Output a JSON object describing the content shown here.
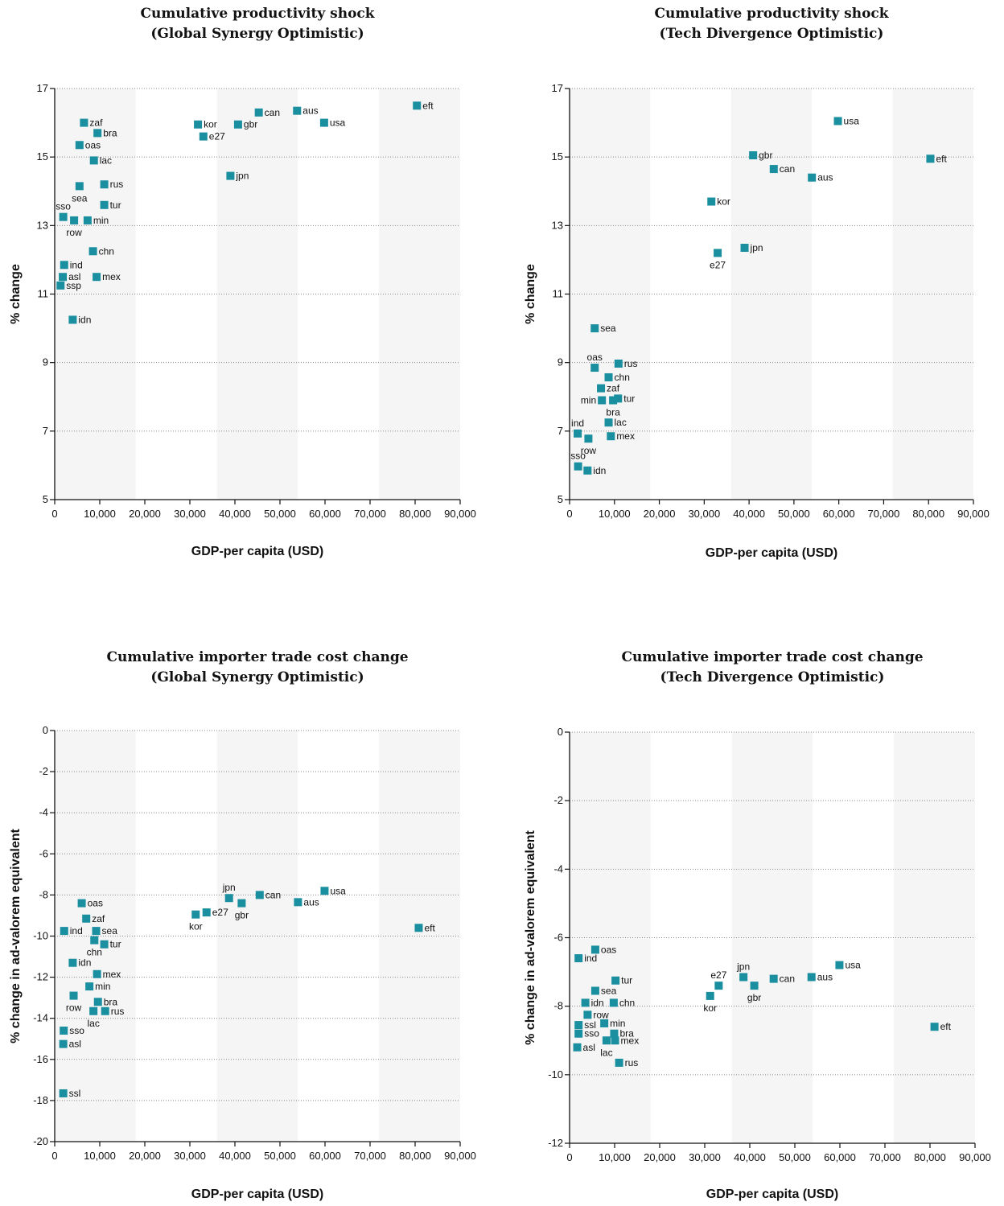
{
  "chart_data": [
    {
      "type": "scatter",
      "title": "Cumulative productivity shock",
      "subtitle": "(Global Synergy Optimistic)",
      "xlabel": "GDP-per capita (USD)",
      "ylabel": "% change",
      "xlim": [
        0,
        90000
      ],
      "ylim": [
        5,
        17
      ],
      "xticks": [
        "0",
        "10,000",
        "20,000",
        "30,000",
        "40,000",
        "50,000",
        "60,000",
        "70,000",
        "80,000",
        "90,000"
      ],
      "yticks": [
        "5",
        "7",
        "9",
        "11",
        "13",
        "15",
        "17"
      ],
      "marker_color": "#1a8fa0",
      "band_color": "#f5f5f5",
      "points": [
        {
          "label": "zaf",
          "x": 6500,
          "y": 16.0,
          "pos": "right"
        },
        {
          "label": "bra",
          "x": 9500,
          "y": 15.7,
          "pos": "right"
        },
        {
          "label": "oas",
          "x": 5500,
          "y": 15.35,
          "pos": "right"
        },
        {
          "label": "lac",
          "x": 8700,
          "y": 14.9,
          "pos": "right"
        },
        {
          "label": "rus",
          "x": 11000,
          "y": 14.2,
          "pos": "right"
        },
        {
          "label": "sea",
          "x": 5500,
          "y": 14.15,
          "pos": "below"
        },
        {
          "label": "tur",
          "x": 11000,
          "y": 13.6,
          "pos": "right"
        },
        {
          "label": "sso",
          "x": 1900,
          "y": 13.25,
          "pos": "above"
        },
        {
          "label": "min",
          "x": 7300,
          "y": 13.15,
          "pos": "right"
        },
        {
          "label": "row",
          "x": 4300,
          "y": 13.15,
          "pos": "below"
        },
        {
          "label": "chn",
          "x": 8500,
          "y": 12.25,
          "pos": "right"
        },
        {
          "label": "ind",
          "x": 2100,
          "y": 11.85,
          "pos": "right"
        },
        {
          "label": "asl",
          "x": 1800,
          "y": 11.5,
          "pos": "right"
        },
        {
          "label": "mex",
          "x": 9300,
          "y": 11.5,
          "pos": "right"
        },
        {
          "label": "ssp",
          "x": 1300,
          "y": 11.25,
          "pos": "right"
        },
        {
          "label": "idn",
          "x": 4000,
          "y": 10.25,
          "pos": "right"
        },
        {
          "label": "kor",
          "x": 31800,
          "y": 15.95,
          "pos": "right"
        },
        {
          "label": "gbr",
          "x": 40700,
          "y": 15.95,
          "pos": "right"
        },
        {
          "label": "can",
          "x": 45300,
          "y": 16.3,
          "pos": "right"
        },
        {
          "label": "aus",
          "x": 53800,
          "y": 16.35,
          "pos": "right"
        },
        {
          "label": "usa",
          "x": 59800,
          "y": 16.0,
          "pos": "right"
        },
        {
          "label": "e27",
          "x": 33000,
          "y": 15.6,
          "pos": "right"
        },
        {
          "label": "eft",
          "x": 80400,
          "y": 16.5,
          "pos": "right"
        },
        {
          "label": "jpn",
          "x": 39000,
          "y": 14.45,
          "pos": "right"
        }
      ]
    },
    {
      "type": "scatter",
      "title": "Cumulative productivity shock",
      "subtitle": "(Tech Divergence Optimistic)",
      "xlabel": "GDP-per capita (USD)",
      "ylabel": "% change",
      "xlim": [
        0,
        90000
      ],
      "ylim": [
        5,
        17
      ],
      "xticks": [
        "0",
        "10,000",
        "20,000",
        "30,000",
        "40,000",
        "50,000",
        "60,000",
        "70,000",
        "80,000",
        "90,000"
      ],
      "yticks": [
        "5",
        "7",
        "9",
        "11",
        "13",
        "15",
        "17"
      ],
      "marker_color": "#1a8fa0",
      "band_color": "#f5f5f5",
      "points": [
        {
          "label": "usa",
          "x": 59800,
          "y": 16.05,
          "pos": "right"
        },
        {
          "label": "gbr",
          "x": 40900,
          "y": 15.05,
          "pos": "right"
        },
        {
          "label": "eft",
          "x": 80400,
          "y": 14.95,
          "pos": "right"
        },
        {
          "label": "can",
          "x": 45500,
          "y": 14.65,
          "pos": "right"
        },
        {
          "label": "aus",
          "x": 54000,
          "y": 14.4,
          "pos": "right"
        },
        {
          "label": "kor",
          "x": 31600,
          "y": 13.7,
          "pos": "right"
        },
        {
          "label": "jpn",
          "x": 39000,
          "y": 12.35,
          "pos": "right"
        },
        {
          "label": "e27",
          "x": 33000,
          "y": 12.2,
          "pos": "below"
        },
        {
          "label": "sea",
          "x": 5600,
          "y": 10.0,
          "pos": "right"
        },
        {
          "label": "rus",
          "x": 10900,
          "y": 8.97,
          "pos": "right"
        },
        {
          "label": "oas",
          "x": 5600,
          "y": 8.85,
          "pos": "above"
        },
        {
          "label": "chn",
          "x": 8700,
          "y": 8.57,
          "pos": "right"
        },
        {
          "label": "zaf",
          "x": 7000,
          "y": 8.25,
          "pos": "right"
        },
        {
          "label": "tur",
          "x": 10800,
          "y": 7.95,
          "pos": "right"
        },
        {
          "label": "min",
          "x": 7200,
          "y": 7.9,
          "pos": "left"
        },
        {
          "label": "bra",
          "x": 9700,
          "y": 7.9,
          "pos": "below"
        },
        {
          "label": "lac",
          "x": 8700,
          "y": 7.25,
          "pos": "right"
        },
        {
          "label": "ind",
          "x": 1800,
          "y": 6.93,
          "pos": "above"
        },
        {
          "label": "mex",
          "x": 9200,
          "y": 6.85,
          "pos": "right"
        },
        {
          "label": "row",
          "x": 4200,
          "y": 6.78,
          "pos": "below"
        },
        {
          "label": "sso",
          "x": 1900,
          "y": 5.97,
          "pos": "above"
        },
        {
          "label": "idn",
          "x": 4000,
          "y": 5.85,
          "pos": "right"
        }
      ]
    },
    {
      "type": "scatter",
      "title": "Cumulative importer trade cost change",
      "subtitle": "(Global Synergy Optimistic)",
      "xlabel": "GDP-per capita (USD)",
      "ylabel": "% change in ad-valorem equivalent",
      "xlim": [
        0,
        90000
      ],
      "ylim": [
        -20,
        0
      ],
      "xticks": [
        "0",
        "10,000",
        "20,000",
        "30,000",
        "40,000",
        "50,000",
        "60,000",
        "70,000",
        "80,000",
        "90,000"
      ],
      "yticks": [
        "-20",
        "-18",
        "-16",
        "-14",
        "-12",
        "-10",
        "-8",
        "-6",
        "-4",
        "-2",
        "0"
      ],
      "marker_color": "#1a8fa0",
      "band_color": "#f5f5f5",
      "points": [
        {
          "label": "oas",
          "x": 6000,
          "y": -8.4,
          "pos": "right"
        },
        {
          "label": "zaf",
          "x": 7000,
          "y": -9.15,
          "pos": "right"
        },
        {
          "label": "ind",
          "x": 2100,
          "y": -9.75,
          "pos": "right"
        },
        {
          "label": "sea",
          "x": 9200,
          "y": -9.75,
          "pos": "right"
        },
        {
          "label": "chn",
          "x": 8800,
          "y": -10.2,
          "pos": "below"
        },
        {
          "label": "tur",
          "x": 11000,
          "y": -10.4,
          "pos": "right"
        },
        {
          "label": "idn",
          "x": 4000,
          "y": -11.3,
          "pos": "right"
        },
        {
          "label": "mex",
          "x": 9400,
          "y": -11.85,
          "pos": "right"
        },
        {
          "label": "min",
          "x": 7700,
          "y": -12.45,
          "pos": "right"
        },
        {
          "label": "row",
          "x": 4200,
          "y": -12.9,
          "pos": "below"
        },
        {
          "label": "bra",
          "x": 9600,
          "y": -13.2,
          "pos": "right"
        },
        {
          "label": "lac",
          "x": 8600,
          "y": -13.65,
          "pos": "below"
        },
        {
          "label": "rus",
          "x": 11200,
          "y": -13.65,
          "pos": "right"
        },
        {
          "label": "sso",
          "x": 2000,
          "y": -14.6,
          "pos": "right"
        },
        {
          "label": "asl",
          "x": 1900,
          "y": -15.25,
          "pos": "right"
        },
        {
          "label": "ssl",
          "x": 1900,
          "y": -17.65,
          "pos": "right"
        },
        {
          "label": "jpn",
          "x": 38700,
          "y": -8.15,
          "pos": "above"
        },
        {
          "label": "can",
          "x": 45500,
          "y": -8.0,
          "pos": "right"
        },
        {
          "label": "usa",
          "x": 59900,
          "y": -7.8,
          "pos": "right"
        },
        {
          "label": "aus",
          "x": 54000,
          "y": -8.35,
          "pos": "right"
        },
        {
          "label": "gbr",
          "x": 41500,
          "y": -8.4,
          "pos": "below"
        },
        {
          "label": "e27",
          "x": 33700,
          "y": -8.85,
          "pos": "right"
        },
        {
          "label": "kor",
          "x": 31300,
          "y": -8.95,
          "pos": "below"
        },
        {
          "label": "eft",
          "x": 80800,
          "y": -9.6,
          "pos": "right"
        }
      ]
    },
    {
      "type": "scatter",
      "title": "Cumulative importer trade cost change",
      "subtitle": "(Tech Divergence Optimistic)",
      "xlabel": "GDP-per capita (USD)",
      "ylabel": "% change in ad-valorem equivalent",
      "xlim": [
        0,
        90000
      ],
      "ylim": [
        -12,
        0
      ],
      "xticks": [
        "0",
        "10,000",
        "20,000",
        "30,000",
        "40,000",
        "50,000",
        "60,000",
        "70,000",
        "80,000",
        "90,000"
      ],
      "yticks": [
        "-12",
        "-10",
        "-8",
        "-6",
        "-4",
        "-2",
        "0"
      ],
      "marker_color": "#1a8fa0",
      "band_color": "#f5f5f5",
      "points": [
        {
          "label": "oas",
          "x": 5700,
          "y": -6.35,
          "pos": "right"
        },
        {
          "label": "ind",
          "x": 2000,
          "y": -6.6,
          "pos": "right"
        },
        {
          "label": "tur",
          "x": 10200,
          "y": -7.25,
          "pos": "right"
        },
        {
          "label": "sea",
          "x": 5700,
          "y": -7.55,
          "pos": "right"
        },
        {
          "label": "idn",
          "x": 3500,
          "y": -7.9,
          "pos": "right"
        },
        {
          "label": "chn",
          "x": 9800,
          "y": -7.9,
          "pos": "right"
        },
        {
          "label": "row",
          "x": 4000,
          "y": -8.25,
          "pos": "right"
        },
        {
          "label": "min",
          "x": 7700,
          "y": -8.5,
          "pos": "right"
        },
        {
          "label": "ssl",
          "x": 2000,
          "y": -8.55,
          "pos": "right"
        },
        {
          "label": "sso",
          "x": 2000,
          "y": -8.8,
          "pos": "right"
        },
        {
          "label": "bra",
          "x": 9900,
          "y": -8.8,
          "pos": "right"
        },
        {
          "label": "lac",
          "x": 8200,
          "y": -9.0,
          "pos": "below"
        },
        {
          "label": "mex",
          "x": 10100,
          "y": -9.0,
          "pos": "right"
        },
        {
          "label": "asl",
          "x": 1700,
          "y": -9.2,
          "pos": "right"
        },
        {
          "label": "rus",
          "x": 11000,
          "y": -9.65,
          "pos": "right"
        },
        {
          "label": "jpn",
          "x": 38600,
          "y": -7.15,
          "pos": "above"
        },
        {
          "label": "e27",
          "x": 33100,
          "y": -7.4,
          "pos": "above"
        },
        {
          "label": "can",
          "x": 45300,
          "y": -7.2,
          "pos": "right"
        },
        {
          "label": "aus",
          "x": 53700,
          "y": -7.15,
          "pos": "right"
        },
        {
          "label": "usa",
          "x": 59900,
          "y": -6.8,
          "pos": "right"
        },
        {
          "label": "gbr",
          "x": 41000,
          "y": -7.4,
          "pos": "below"
        },
        {
          "label": "kor",
          "x": 31200,
          "y": -7.7,
          "pos": "below"
        },
        {
          "label": "eft",
          "x": 81000,
          "y": -8.6,
          "pos": "right"
        }
      ]
    }
  ]
}
